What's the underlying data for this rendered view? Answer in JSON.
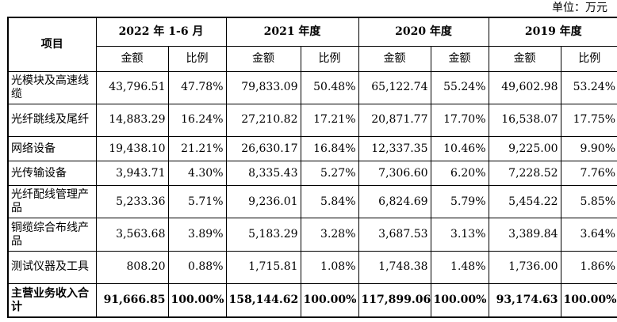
{
  "unit_label": "单位：万元",
  "header": {
    "project": "项目",
    "periods": [
      "2022 年 1-6 月",
      "2021 年度",
      "2020 年度",
      "2019 年度"
    ],
    "sub_labels": [
      "金额",
      "比例",
      "金额",
      "比例",
      "金额",
      "金额",
      "金额",
      "比例"
    ]
  },
  "rows": [
    {
      "name": "光模块及高速线缆",
      "values": [
        "43,796.51",
        "47.78%",
        "79,833.09",
        "50.48%",
        "65,122.74",
        "55.24%",
        "49,602.98",
        "53.24%"
      ]
    },
    {
      "name": "光纤跳线及尾纤",
      "values": [
        "14,883.29",
        "16.24%",
        "27,210.82",
        "17.21%",
        "20,871.77",
        "17.70%",
        "16,538.07",
        "17.75%"
      ]
    },
    {
      "name": "网络设备",
      "values": [
        "19,438.10",
        "21.21%",
        "26,630.17",
        "16.84%",
        "12,337.35",
        "10.46%",
        "9,225.00",
        "9.90%"
      ]
    },
    {
      "name": "光传输设备",
      "values": [
        "3,943.71",
        "4.30%",
        "8,335.43",
        "5.27%",
        "7,306.60",
        "6.20%",
        "7,228.52",
        "7.76%"
      ]
    },
    {
      "name": "光纤配线管理产品",
      "values": [
        "5,233.36",
        "5.71%",
        "9,236.01",
        "5.84%",
        "6,824.69",
        "5.79%",
        "5,454.22",
        "5.85%"
      ]
    },
    {
      "name": "铜缆综合布线产品",
      "values": [
        "3,563.68",
        "3.89%",
        "5,183.29",
        "3.28%",
        "3,687.53",
        "3.13%",
        "3,389.84",
        "3.64%"
      ]
    },
    {
      "name": "测试仪器及工具",
      "values": [
        "808.20",
        "0.88%",
        "1,715.81",
        "1.08%",
        "1,748.38",
        "1.48%",
        "1,736.00",
        "1.86%"
      ]
    }
  ],
  "total": {
    "name": "主营业务收入合计",
    "values": [
      "91,666.85",
      "100.00%",
      "158,144.62",
      "100.00%",
      "117,899.06",
      "100.00%",
      "93,174.63",
      "100.00%"
    ]
  }
}
